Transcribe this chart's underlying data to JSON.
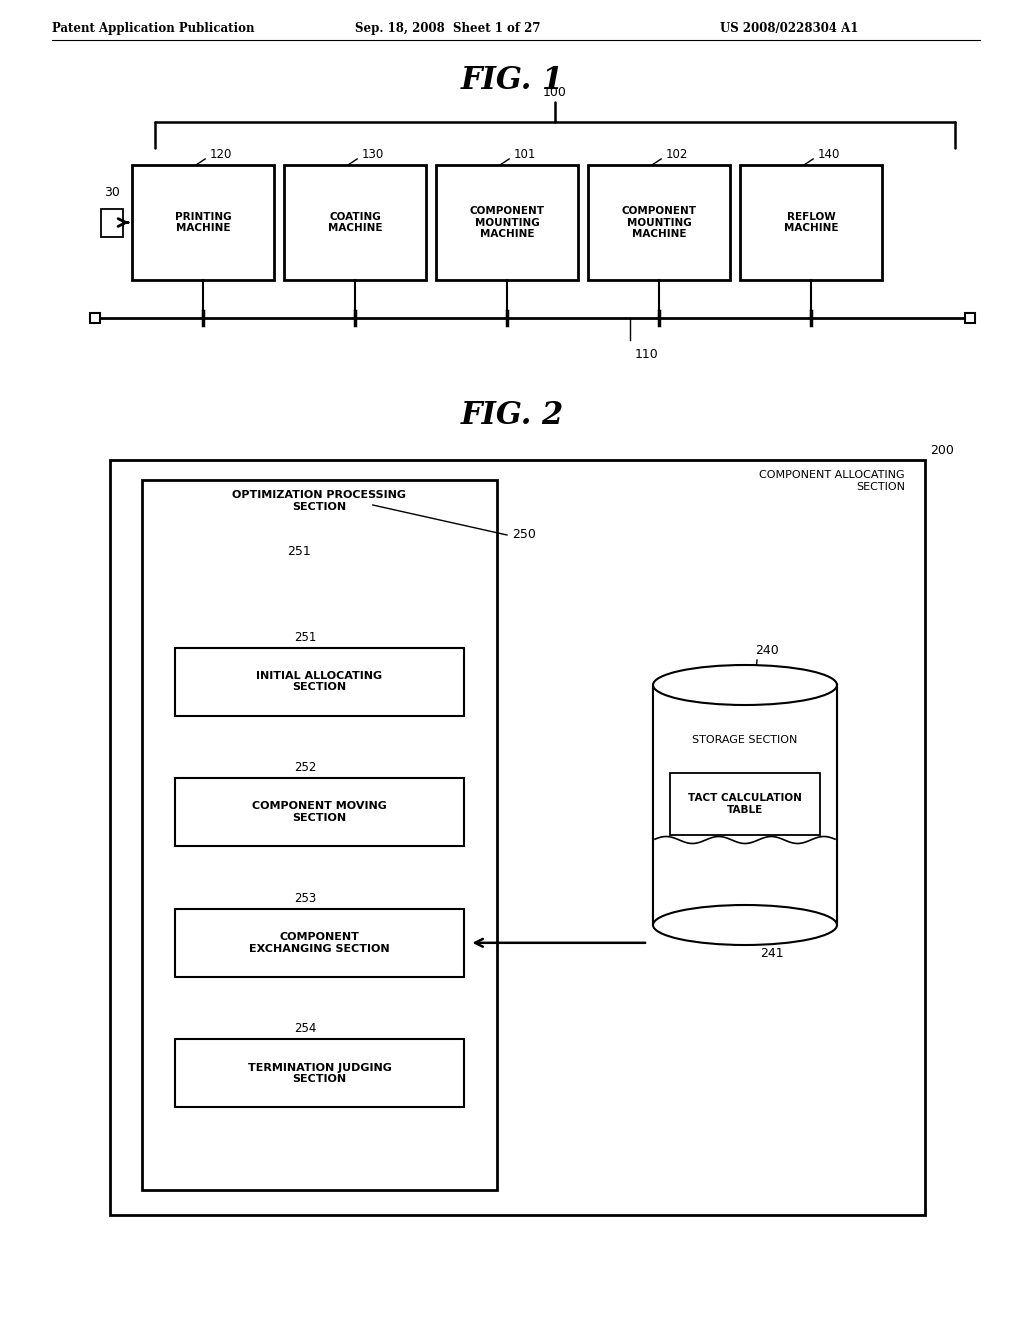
{
  "bg_color": "#ffffff",
  "header_left": "Patent Application Publication",
  "header_mid": "Sep. 18, 2008  Sheet 1 of 27",
  "header_right": "US 2008/0228304 A1",
  "fig1_title": "FIG. 1",
  "fig2_title": "FIG. 2",
  "fig1": {
    "label_100": "100",
    "label_110": "110",
    "label_30": "30",
    "machines": [
      {
        "label": "120",
        "text": "PRINTING\nMACHINE"
      },
      {
        "label": "130",
        "text": "COATING\nMACHINE"
      },
      {
        "label": "101",
        "text": "COMPONENT\nMOUNTING\nMACHINE"
      },
      {
        "label": "102",
        "text": "COMPONENT\nMOUNTING\nMACHINE"
      },
      {
        "label": "140",
        "text": "REFLOW\nMACHINE"
      }
    ]
  },
  "fig2": {
    "label_200": "200",
    "label_250": "250",
    "label_251": "251",
    "label_252": "252",
    "label_253": "253",
    "label_254": "254",
    "label_240": "240",
    "label_241": "241",
    "outer_label": "COMPONENT ALLOCATING\nSECTION",
    "opt_section_label": "OPTIMIZATION PROCESSING\nSECTION",
    "boxes": [
      "INITIAL ALLOCATING\nSECTION",
      "COMPONENT MOVING\nSECTION",
      "COMPONENT\nEXCHANGING SECTION",
      "TERMINATION JUDGING\nSECTION"
    ],
    "storage_label": "STORAGE SECTION",
    "tact_label": "TACT CALCULATION\nTABLE"
  }
}
